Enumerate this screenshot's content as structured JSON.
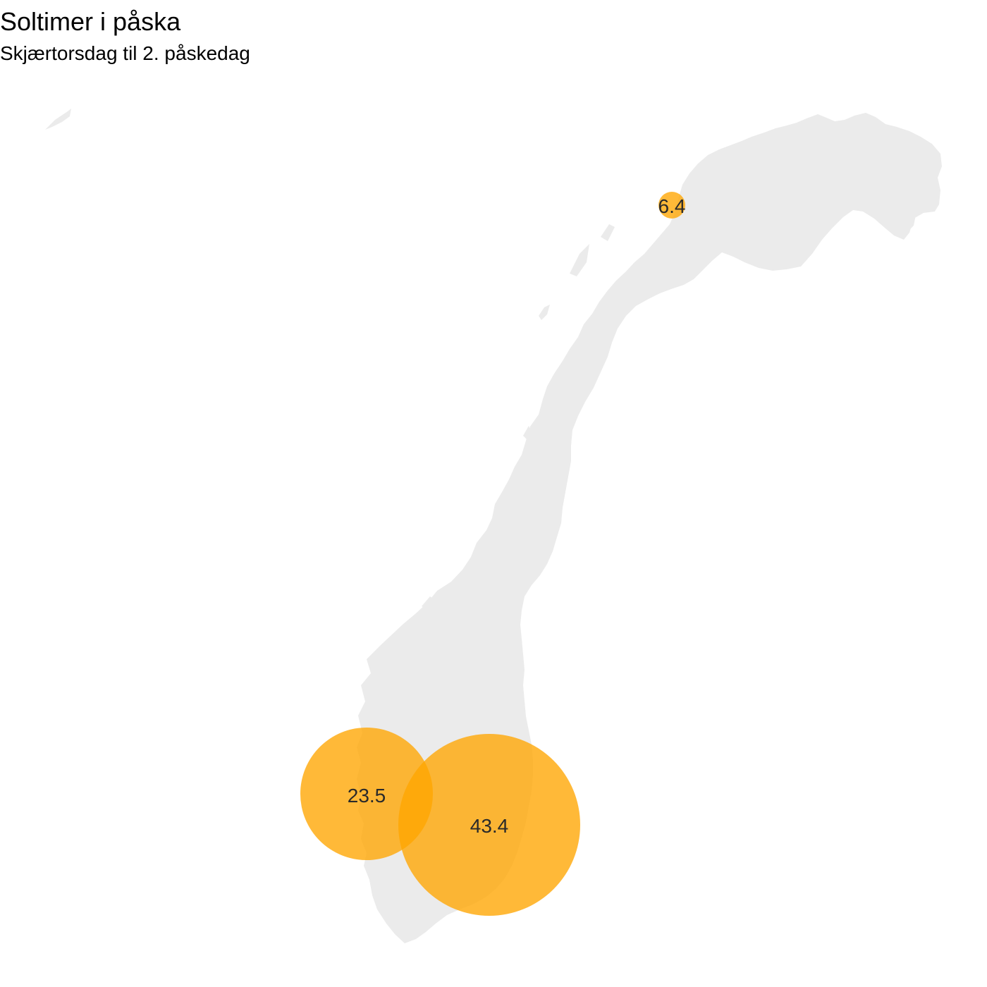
{
  "title": "Soltimer i påska",
  "subtitle": "Skjærtorsdag til 2. påskedag",
  "colors": {
    "land": "#ebebeb",
    "bubble": "#ffa500",
    "background": "#ffffff"
  },
  "bubbles": [
    {
      "label": "6.4",
      "value": 6.4
    },
    {
      "label": "23.5",
      "value": 23.5
    },
    {
      "label": "43.4",
      "value": 43.4
    }
  ]
}
